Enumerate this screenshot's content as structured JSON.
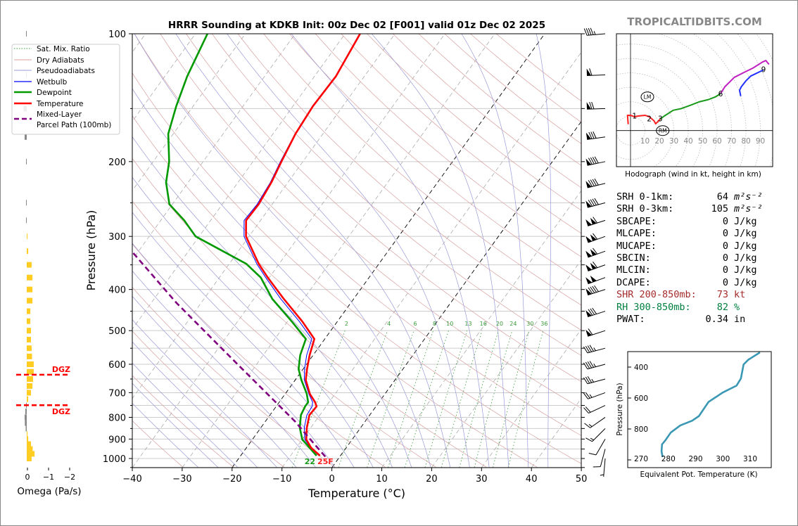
{
  "watermark": "TROPICALTIDBITS.COM",
  "colors": {
    "temperature": "#ff0000",
    "dewpoint": "#009900",
    "wetbulb": "#0000ff",
    "parcel": "#800080",
    "dry": "#d8a0a0",
    "moist": "#9a9ad8",
    "mixing": "#3a9a3a",
    "isotherm": "#aaaaaa",
    "theta_e": "#3a98b4",
    "omega_up": "#ffcc22",
    "omega_down": "#888888",
    "dgz": "#ff0000",
    "shr": "#a52a2a",
    "rh": "#008040"
  },
  "legend": [
    {
      "label": "Sat. Mix. Ratio"
    },
    {
      "label": "Dry Adiabats"
    },
    {
      "label": "Pseudoadiabats"
    },
    {
      "label": "Wetbulb"
    },
    {
      "label": "Dewpoint"
    },
    {
      "label": "Temperature"
    },
    {
      "label": "Mixed-Layer"
    },
    {
      "label": "Parcel Path (100mb)"
    }
  ],
  "stats": [
    {
      "label": "SRH 0-1km:",
      "value": "64",
      "unit": "m²s⁻²",
      "color": "#000"
    },
    {
      "label": "SRH 0-3km:",
      "value": "105",
      "unit": "m²s⁻²",
      "color": "#000"
    },
    {
      "label": "SBCAPE:",
      "value": "0",
      "unit": "J/kg",
      "color": "#000"
    },
    {
      "label": "MLCAPE:",
      "value": "0",
      "unit": "J/kg",
      "color": "#000"
    },
    {
      "label": "MUCAPE:",
      "value": "0",
      "unit": "J/kg",
      "color": "#000"
    },
    {
      "label": "SBCIN:",
      "value": "0",
      "unit": "J/kg",
      "color": "#000"
    },
    {
      "label": "MLCIN:",
      "value": "0",
      "unit": "J/kg",
      "color": "#000"
    },
    {
      "label": "DCAPE:",
      "value": "0",
      "unit": "J/kg",
      "color": "#000"
    },
    {
      "label": "SHR 200-850mb:",
      "value": "73",
      "unit": "kt",
      "color": "#a52a2a"
    },
    {
      "label": "RH 300-850mb:",
      "value": "82",
      "unit": "%",
      "color": "#008040"
    },
    {
      "label": "PWAT:",
      "value": "0.34",
      "unit": "in",
      "color": "#000"
    }
  ],
  "chart_data": [
    {
      "type": "line",
      "name": "skew-t",
      "title": "HRRR Sounding at KDKB Init: 00z Dec 02 [F001] valid 01z Dec 02 2025",
      "xlabel": "Temperature (°C)",
      "ylabel": "Pressure (hPa)",
      "xlim": [
        -40,
        50
      ],
      "ylim": [
        1050,
        100
      ],
      "xticks": [
        "−40",
        "−30",
        "−20",
        "−10",
        "0",
        "10",
        "20",
        "30",
        "40",
        "50"
      ],
      "xtick_values": [
        -40,
        -30,
        -20,
        -10,
        0,
        10,
        20,
        30,
        40,
        50
      ],
      "yticks": [
        100,
        200,
        300,
        400,
        500,
        600,
        700,
        800,
        900,
        1000
      ],
      "pressure": [
        985,
        944,
        902,
        846,
        790,
        754,
        737,
        704,
        653,
        616,
        571,
        523,
        476,
        421,
        375,
        348,
        300,
        275,
        252,
        224,
        200,
        172,
        148,
        126,
        100
      ],
      "series": [
        {
          "name": "Temperature",
          "values": [
            -4.1,
            -7.0,
            -9.2,
            -10.8,
            -12.1,
            -11.9,
            -12.8,
            -15.1,
            -17.9,
            -19.2,
            -20.7,
            -22.1,
            -27.0,
            -34.0,
            -40.3,
            -44.1,
            -50.6,
            -52.9,
            -52.7,
            -53.3,
            -54.3,
            -55.5,
            -56.0,
            -55.7,
            -57.0
          ]
        },
        {
          "name": "Dewpoint",
          "values": [
            -4.8,
            -7.3,
            -10.0,
            -12.2,
            -13.8,
            -14.2,
            -14.2,
            -15.7,
            -18.8,
            -20.9,
            -22.6,
            -23.8,
            -29.1,
            -36.3,
            -41.7,
            -46.6,
            -60.7,
            -65.3,
            -70.6,
            -74.4,
            -76.8,
            -81.0,
            -83.4,
            -85.5,
            -87.6
          ]
        },
        {
          "name": "Wetbulb",
          "values": [
            -4.3,
            -7.1,
            -9.5,
            -11.3,
            -12.6,
            -12.8,
            -13.3,
            -15.3,
            -18.2,
            -19.7,
            -21.3,
            -22.6,
            -27.6,
            -34.6,
            -40.7,
            -44.5,
            -51.0,
            -53.3,
            -53.0,
            -53.5,
            -54.5,
            -55.6,
            -56.1,
            -55.8,
            -57.1
          ]
        }
      ],
      "parcel_path": {
        "name": "Mixed-Layer Parcel Path (100mb)",
        "pressure": [
          990,
          900,
          820,
          700,
          605,
          500,
          429,
          326
        ],
        "values": [
          -2.9,
          -8.5,
          -13.9,
          -24.0,
          -33.3,
          -45.4,
          -55.1,
          -71.2
        ]
      },
      "highlight_isotherms": [
        -20,
        0
      ],
      "mixing_ratio_labels": [
        "2",
        "4",
        "6",
        "8",
        "10",
        "13",
        "16",
        "20",
        "24",
        "30",
        "36"
      ],
      "mixing_ratio_values": [
        2,
        4,
        6,
        8,
        10,
        13,
        16,
        20,
        24,
        30,
        36
      ],
      "surface_labels": {
        "dewpoint": "22",
        "temperature": "25F"
      },
      "winds": {
        "pressure": [
          100,
          125,
          150,
          175,
          200,
          225,
          250,
          275,
          300,
          325,
          350,
          375,
          400,
          450,
          500,
          550,
          600,
          650,
          700,
          750,
          800,
          850,
          900,
          950,
          1000
        ],
        "speed_kt": [
          45,
          60,
          70,
          80,
          90,
          90,
          90,
          110,
          110,
          110,
          110,
          100,
          90,
          80,
          60,
          45,
          45,
          35,
          25,
          20,
          15,
          15,
          10,
          10,
          5
        ],
        "direction_deg": [
          265,
          268,
          268,
          262,
          258,
          256,
          255,
          252,
          250,
          250,
          250,
          250,
          252,
          252,
          252,
          255,
          255,
          255,
          250,
          245,
          235,
          225,
          210,
          195,
          185
        ]
      }
    },
    {
      "type": "bar",
      "name": "omega",
      "xlabel": "Omega (Pa/s)",
      "xticks": [
        "0",
        "−1",
        "−2"
      ],
      "xtick_values": [
        0,
        -1,
        -2
      ],
      "pressure": [
        100,
        125,
        150,
        175,
        200,
        250,
        275,
        300,
        325,
        350,
        375,
        400,
        425,
        450,
        475,
        500,
        525,
        550,
        575,
        600,
        625,
        650,
        675,
        700,
        725,
        750,
        775,
        800,
        825,
        850,
        875,
        900,
        925,
        950,
        975,
        1000
      ],
      "values": [
        0.01,
        0.03,
        0.15,
        0.1,
        0.03,
        0.01,
        0.03,
        -0.03,
        -0.07,
        -0.23,
        -0.27,
        -0.27,
        -0.27,
        -0.17,
        -0.17,
        -0.2,
        -0.2,
        -0.23,
        -0.25,
        -0.33,
        -0.33,
        -0.3,
        -0.27,
        -0.2,
        -0.07,
        0.01,
        0.07,
        0.1,
        0.09,
        0.05,
        -0.02,
        -0.07,
        -0.2,
        -0.28,
        -0.37,
        -0.23
      ],
      "dgz": {
        "label": "DGZ",
        "pressures": [
          635,
          749
        ]
      }
    },
    {
      "type": "line",
      "name": "hodograph",
      "xlabel": "Hodograph (wind in kt, height in km)",
      "ring_labels": [
        "10",
        "20",
        "30",
        "40",
        "50",
        "60",
        "70",
        "80",
        "90"
      ],
      "ring_values": [
        10,
        20,
        30,
        40,
        50,
        60,
        70,
        80,
        90
      ],
      "segments": [
        {
          "name": "0-3 km",
          "color": "#ff2020",
          "u": [
            -1.6,
            -2.1,
            0,
            2.8,
            5.2,
            10.1,
            13,
            16.3,
            17.4,
            19,
            20.6
          ],
          "v": [
            4.4,
            10.6,
            10.6,
            9.6,
            10.1,
            10.6,
            9.6,
            6.8,
            4.7,
            6.3,
            8
          ]
        },
        {
          "name": "3-6 km",
          "color": "#1a9a1a",
          "u": [
            20.6,
            23.4,
            29.6,
            35.3,
            41,
            47.5,
            54,
            58.9,
            62.4
          ],
          "v": [
            8,
            10.1,
            14.1,
            15.3,
            17.4,
            19.9,
            21.5,
            23.4,
            25.6
          ]
        },
        {
          "name": "6-9 km",
          "color": "#c020c0",
          "u": [
            62.4,
            65.4,
            71.9,
            78.4,
            84.9,
            91.4,
            93.8,
            96
          ],
          "v": [
            25.6,
            30.4,
            36.9,
            40.2,
            43.4,
            47.5,
            48.6,
            45.9
          ]
        },
        {
          "name": "9+ km",
          "color": "#2030ff",
          "u": [
            92.2,
            83.3,
            80,
            76.8,
            75.6,
            76.4
          ],
          "v": [
            42.1,
            37.8,
            34.5,
            30.4,
            28,
            23.9
          ]
        }
      ],
      "height_labels": [
        {
          "text": "1",
          "u": 2.8,
          "v": 10.3
        },
        {
          "text": "2",
          "u": 13,
          "v": 8.5
        },
        {
          "text": "3",
          "u": 20.6,
          "v": 8.3
        },
        {
          "text": "6",
          "u": 62.4,
          "v": 25.6
        },
        {
          "text": "9",
          "u": 92.2,
          "v": 42.5
        }
      ],
      "storm_motion": [
        {
          "text": "LM",
          "u": 11.7,
          "v": 23.4
        },
        {
          "text": "RM",
          "u": 22.3,
          "v": 0
        }
      ]
    },
    {
      "type": "line",
      "name": "theta-e",
      "xlabel": "Equivalent Pot. Temperature (K)",
      "ylabel": "Pressure (hPa)",
      "xticks": [
        "270",
        "280",
        "290",
        "300",
        "310"
      ],
      "xtick_values": [
        270,
        280,
        290,
        300,
        310
      ],
      "yticks": [
        "400",
        "600",
        "800"
      ],
      "ytick_values": [
        400,
        600,
        800
      ],
      "pressure": [
        982,
        944,
        899,
        876,
        823,
        777,
        747,
        717,
        626,
        565,
        520,
        474,
        383,
        353,
        305
      ],
      "values": [
        277.9,
        277.5,
        277.7,
        278.8,
        280.9,
        284.4,
        288.7,
        291.2,
        294.7,
        299.9,
        305,
        306.6,
        307.6,
        309.3,
        313.6
      ]
    }
  ]
}
